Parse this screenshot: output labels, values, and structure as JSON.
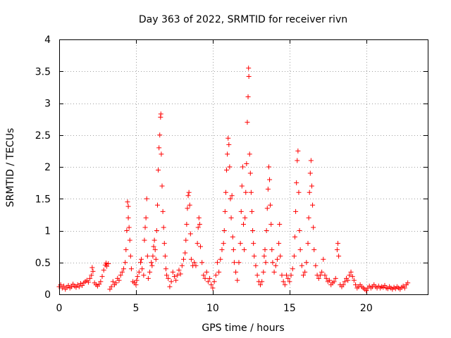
{
  "chart_data": {
    "type": "scatter",
    "title": "Day 363 of 2022, SRMTID for receiver rivn",
    "xlabel": "GPS time / hours",
    "ylabel": "SRMTID / TECUs",
    "xlim": [
      0,
      24
    ],
    "ylim": [
      0,
      4
    ],
    "xticks": [
      0,
      5,
      10,
      15,
      20
    ],
    "yticks": [
      0,
      0.5,
      1,
      1.5,
      2,
      2.5,
      3,
      3.5,
      4
    ],
    "xtick_labels": [
      "0",
      "5",
      "10",
      "15",
      "20"
    ],
    "ytick_labels": [
      "0",
      "0.5",
      "1",
      "1.5",
      "2",
      "2.5",
      "3",
      "3.5",
      "4"
    ],
    "grid": true,
    "legend": "none",
    "marker": "plus",
    "color": "#ff0000",
    "series": [
      {
        "name": "rivn",
        "points": [
          [
            0.0,
            0.12
          ],
          [
            0.1,
            0.15
          ],
          [
            0.2,
            0.1
          ],
          [
            0.3,
            0.13
          ],
          [
            0.4,
            0.08
          ],
          [
            0.5,
            0.11
          ],
          [
            0.6,
            0.14
          ],
          [
            0.7,
            0.1
          ],
          [
            0.8,
            0.12
          ],
          [
            0.9,
            0.16
          ],
          [
            1.0,
            0.13
          ],
          [
            1.1,
            0.11
          ],
          [
            1.2,
            0.15
          ],
          [
            1.3,
            0.12
          ],
          [
            1.4,
            0.17
          ],
          [
            1.5,
            0.14
          ],
          [
            1.6,
            0.18
          ],
          [
            1.7,
            0.2
          ],
          [
            1.8,
            0.22
          ],
          [
            1.9,
            0.19
          ],
          [
            2.0,
            0.25
          ],
          [
            2.1,
            0.3
          ],
          [
            2.15,
            0.42
          ],
          [
            2.2,
            0.36
          ],
          [
            2.3,
            0.18
          ],
          [
            2.4,
            0.15
          ],
          [
            2.5,
            0.13
          ],
          [
            2.6,
            0.16
          ],
          [
            2.7,
            0.2
          ],
          [
            2.8,
            0.28
          ],
          [
            2.9,
            0.38
          ],
          [
            3.0,
            0.46
          ],
          [
            3.05,
            0.49
          ],
          [
            3.1,
            0.44
          ],
          [
            3.2,
            0.48
          ],
          [
            3.3,
            0.08
          ],
          [
            3.4,
            0.12
          ],
          [
            3.5,
            0.2
          ],
          [
            3.6,
            0.15
          ],
          [
            3.7,
            0.18
          ],
          [
            3.8,
            0.25
          ],
          [
            3.9,
            0.22
          ],
          [
            4.0,
            0.3
          ],
          [
            4.1,
            0.35
          ],
          [
            4.2,
            0.4
          ],
          [
            4.3,
            0.5
          ],
          [
            4.35,
            0.7
          ],
          [
            4.4,
            1.0
          ],
          [
            4.45,
            1.45
          ],
          [
            4.5,
            1.38
          ],
          [
            4.5,
            1.2
          ],
          [
            4.55,
            1.05
          ],
          [
            4.6,
            0.85
          ],
          [
            4.65,
            0.6
          ],
          [
            4.7,
            0.4
          ],
          [
            4.8,
            0.2
          ],
          [
            4.9,
            0.18
          ],
          [
            5.0,
            0.15
          ],
          [
            5.05,
            0.22
          ],
          [
            5.1,
            0.28
          ],
          [
            5.2,
            0.35
          ],
          [
            5.3,
            0.5
          ],
          [
            5.35,
            0.55
          ],
          [
            5.4,
            0.4
          ],
          [
            5.5,
            0.3
          ],
          [
            5.55,
            0.85
          ],
          [
            5.6,
            1.05
          ],
          [
            5.65,
            1.2
          ],
          [
            5.7,
            1.5
          ],
          [
            5.75,
            0.6
          ],
          [
            5.8,
            0.25
          ],
          [
            5.9,
            0.35
          ],
          [
            6.0,
            0.5
          ],
          [
            6.05,
            0.45
          ],
          [
            6.1,
            0.6
          ],
          [
            6.15,
            0.75
          ],
          [
            6.2,
            0.85
          ],
          [
            6.25,
            0.7
          ],
          [
            6.3,
            0.55
          ],
          [
            6.35,
            1.0
          ],
          [
            6.4,
            1.4
          ],
          [
            6.45,
            1.95
          ],
          [
            6.5,
            2.3
          ],
          [
            6.55,
            2.5
          ],
          [
            6.6,
            2.78
          ],
          [
            6.62,
            2.83
          ],
          [
            6.65,
            2.2
          ],
          [
            6.7,
            1.7
          ],
          [
            6.75,
            1.3
          ],
          [
            6.8,
            1.05
          ],
          [
            6.85,
            0.8
          ],
          [
            6.9,
            0.6
          ],
          [
            6.95,
            0.4
          ],
          [
            7.0,
            0.3
          ],
          [
            7.1,
            0.25
          ],
          [
            7.2,
            0.12
          ],
          [
            7.3,
            0.2
          ],
          [
            7.4,
            0.35
          ],
          [
            7.5,
            0.28
          ],
          [
            7.6,
            0.22
          ],
          [
            7.7,
            0.3
          ],
          [
            7.8,
            0.38
          ],
          [
            7.9,
            0.32
          ],
          [
            8.0,
            0.45
          ],
          [
            8.1,
            0.55
          ],
          [
            8.2,
            0.65
          ],
          [
            8.25,
            0.85
          ],
          [
            8.3,
            1.1
          ],
          [
            8.35,
            1.35
          ],
          [
            8.4,
            1.55
          ],
          [
            8.45,
            1.6
          ],
          [
            8.5,
            1.4
          ],
          [
            8.55,
            0.95
          ],
          [
            8.6,
            0.55
          ],
          [
            8.7,
            0.45
          ],
          [
            8.8,
            0.5
          ],
          [
            8.9,
            0.45
          ],
          [
            9.0,
            0.8
          ],
          [
            9.05,
            1.05
          ],
          [
            9.1,
            1.2
          ],
          [
            9.15,
            1.1
          ],
          [
            9.2,
            0.75
          ],
          [
            9.3,
            0.5
          ],
          [
            9.4,
            0.3
          ],
          [
            9.5,
            0.25
          ],
          [
            9.6,
            0.35
          ],
          [
            9.7,
            0.2
          ],
          [
            9.8,
            0.25
          ],
          [
            9.9,
            0.15
          ],
          [
            10.0,
            0.1
          ],
          [
            10.1,
            0.2
          ],
          [
            10.2,
            0.3
          ],
          [
            10.3,
            0.5
          ],
          [
            10.4,
            0.35
          ],
          [
            10.5,
            0.55
          ],
          [
            10.6,
            0.7
          ],
          [
            10.7,
            0.8
          ],
          [
            10.75,
            1.0
          ],
          [
            10.8,
            1.3
          ],
          [
            10.85,
            1.6
          ],
          [
            10.9,
            1.95
          ],
          [
            10.95,
            2.2
          ],
          [
            11.0,
            2.45
          ],
          [
            11.05,
            2.35
          ],
          [
            11.1,
            2.0
          ],
          [
            11.15,
            1.5
          ],
          [
            11.2,
            1.2
          ],
          [
            11.25,
            1.55
          ],
          [
            11.3,
            0.9
          ],
          [
            11.35,
            0.7
          ],
          [
            11.4,
            0.5
          ],
          [
            11.5,
            0.35
          ],
          [
            11.6,
            0.22
          ],
          [
            11.7,
            0.5
          ],
          [
            11.8,
            0.8
          ],
          [
            11.85,
            1.3
          ],
          [
            11.9,
            1.7
          ],
          [
            11.95,
            2.0
          ],
          [
            12.0,
            1.1
          ],
          [
            12.05,
            0.7
          ],
          [
            12.1,
            1.2
          ],
          [
            12.15,
            1.6
          ],
          [
            12.2,
            2.05
          ],
          [
            12.25,
            2.7
          ],
          [
            12.3,
            3.1
          ],
          [
            12.33,
            3.55
          ],
          [
            12.35,
            3.42
          ],
          [
            12.4,
            2.2
          ],
          [
            12.45,
            1.9
          ],
          [
            12.5,
            1.6
          ],
          [
            12.55,
            1.3
          ],
          [
            12.6,
            1.0
          ],
          [
            12.65,
            0.8
          ],
          [
            12.7,
            0.6
          ],
          [
            12.8,
            0.45
          ],
          [
            12.9,
            0.3
          ],
          [
            13.0,
            0.2
          ],
          [
            13.1,
            0.15
          ],
          [
            13.2,
            0.2
          ],
          [
            13.3,
            0.35
          ],
          [
            13.35,
            0.6
          ],
          [
            13.4,
            0.7
          ],
          [
            13.45,
            0.5
          ],
          [
            13.5,
            1.0
          ],
          [
            13.55,
            1.35
          ],
          [
            13.6,
            1.65
          ],
          [
            13.65,
            2.0
          ],
          [
            13.7,
            1.8
          ],
          [
            13.75,
            1.4
          ],
          [
            13.8,
            1.1
          ],
          [
            13.85,
            0.7
          ],
          [
            13.9,
            0.5
          ],
          [
            14.0,
            0.35
          ],
          [
            14.1,
            0.45
          ],
          [
            14.2,
            0.55
          ],
          [
            14.3,
            0.8
          ],
          [
            14.35,
            1.1
          ],
          [
            14.4,
            0.6
          ],
          [
            14.5,
            0.3
          ],
          [
            14.6,
            0.2
          ],
          [
            14.7,
            0.15
          ],
          [
            14.8,
            0.3
          ],
          [
            14.9,
            0.25
          ],
          [
            15.0,
            0.2
          ],
          [
            15.1,
            0.3
          ],
          [
            15.2,
            0.4
          ],
          [
            15.3,
            0.6
          ],
          [
            15.35,
            0.9
          ],
          [
            15.4,
            1.3
          ],
          [
            15.45,
            1.75
          ],
          [
            15.5,
            2.1
          ],
          [
            15.55,
            2.25
          ],
          [
            15.6,
            1.6
          ],
          [
            15.65,
            1.0
          ],
          [
            15.7,
            0.7
          ],
          [
            15.8,
            0.45
          ],
          [
            15.9,
            0.3
          ],
          [
            16.0,
            0.35
          ],
          [
            16.1,
            0.5
          ],
          [
            16.2,
            0.8
          ],
          [
            16.25,
            1.2
          ],
          [
            16.3,
            1.6
          ],
          [
            16.35,
            1.9
          ],
          [
            16.4,
            2.1
          ],
          [
            16.45,
            1.7
          ],
          [
            16.5,
            1.4
          ],
          [
            16.55,
            1.05
          ],
          [
            16.6,
            0.7
          ],
          [
            16.7,
            0.45
          ],
          [
            16.8,
            0.3
          ],
          [
            16.9,
            0.25
          ],
          [
            17.0,
            0.3
          ],
          [
            17.1,
            0.35
          ],
          [
            17.2,
            0.55
          ],
          [
            17.3,
            0.3
          ],
          [
            17.4,
            0.25
          ],
          [
            17.5,
            0.2
          ],
          [
            17.6,
            0.22
          ],
          [
            17.7,
            0.15
          ],
          [
            17.8,
            0.18
          ],
          [
            17.9,
            0.2
          ],
          [
            18.0,
            0.25
          ],
          [
            18.1,
            0.7
          ],
          [
            18.15,
            0.8
          ],
          [
            18.2,
            0.6
          ],
          [
            18.3,
            0.15
          ],
          [
            18.4,
            0.12
          ],
          [
            18.5,
            0.15
          ],
          [
            18.6,
            0.2
          ],
          [
            18.7,
            0.25
          ],
          [
            18.8,
            0.22
          ],
          [
            18.9,
            0.3
          ],
          [
            19.0,
            0.35
          ],
          [
            19.1,
            0.28
          ],
          [
            19.2,
            0.22
          ],
          [
            19.3,
            0.15
          ],
          [
            19.4,
            0.1
          ],
          [
            19.5,
            0.12
          ],
          [
            19.6,
            0.15
          ],
          [
            19.7,
            0.12
          ],
          [
            19.8,
            0.1
          ],
          [
            19.9,
            0.08
          ],
          [
            20.0,
            0.06
          ],
          [
            20.1,
            0.1
          ],
          [
            20.2,
            0.13
          ],
          [
            20.3,
            0.1
          ],
          [
            20.4,
            0.12
          ],
          [
            20.5,
            0.15
          ],
          [
            20.6,
            0.12
          ],
          [
            20.7,
            0.1
          ],
          [
            20.8,
            0.13
          ],
          [
            20.9,
            0.1
          ],
          [
            21.0,
            0.12
          ],
          [
            21.1,
            0.11
          ],
          [
            21.2,
            0.14
          ],
          [
            21.3,
            0.1
          ],
          [
            21.4,
            0.09
          ],
          [
            21.5,
            0.12
          ],
          [
            21.6,
            0.1
          ],
          [
            21.7,
            0.08
          ],
          [
            21.8,
            0.11
          ],
          [
            21.9,
            0.09
          ],
          [
            22.0,
            0.12
          ],
          [
            22.1,
            0.1
          ],
          [
            22.2,
            0.08
          ],
          [
            22.3,
            0.11
          ],
          [
            22.4,
            0.13
          ],
          [
            22.5,
            0.1
          ],
          [
            22.6,
            0.15
          ],
          [
            22.7,
            0.18
          ]
        ]
      }
    ]
  }
}
